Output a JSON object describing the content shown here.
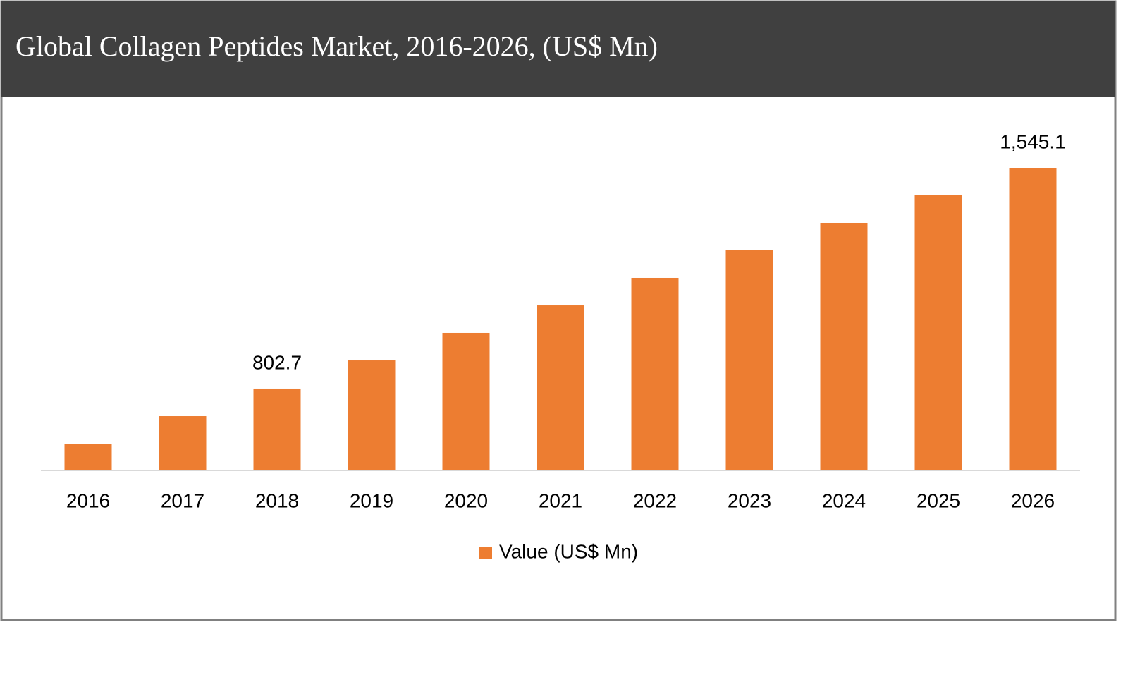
{
  "chart_data": {
    "type": "bar",
    "title": "Global Collagen Peptides Market, 2016-2026, (US$ Mn)",
    "categories": [
      "2016",
      "2017",
      "2018",
      "2019",
      "2020",
      "2021",
      "2022",
      "2023",
      "2024",
      "2025",
      "2026"
    ],
    "series": [
      {
        "name": "Value (US$ Mn)",
        "color": "#ed7d31",
        "values": [
          617.6,
          710.1,
          802.7,
          897.5,
          990.1,
          1082.5,
          1175.1,
          1267.6,
          1360.1,
          1452.6,
          1545.1
        ],
        "value_labels": [
          null,
          null,
          "802.7",
          null,
          null,
          null,
          null,
          null,
          null,
          null,
          "1,545.1"
        ]
      }
    ],
    "ylim": [
      527.5,
      1700
    ],
    "legend": "bottom"
  }
}
